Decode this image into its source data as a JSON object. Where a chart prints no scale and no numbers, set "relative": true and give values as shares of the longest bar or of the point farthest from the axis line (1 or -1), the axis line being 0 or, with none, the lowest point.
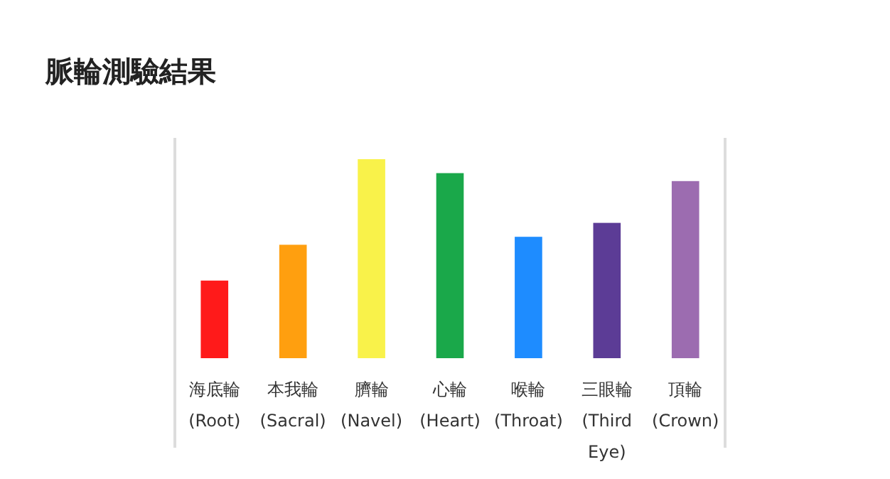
{
  "chart_data": {
    "type": "bar",
    "title": "脈輪測驗結果",
    "relative": true,
    "categories": [
      "海底輪\n(Root)",
      "本我輪\n(Sacral)",
      "臍輪\n(Navel)",
      "心輪\n(Heart)",
      "喉輪\n(Throat)",
      "三眼輪\n(Third\nEye)",
      "頂輪\n(Crown)"
    ],
    "values": [
      0.39,
      0.57,
      1,
      0.93,
      0.61,
      0.68,
      0.89
    ],
    "colors": [
      "#ff1a1a",
      "#ff9f0f",
      "#f9f24a",
      "#1aa84a",
      "#1e8cff",
      "#5c3c96",
      "#9c6cb0"
    ]
  }
}
